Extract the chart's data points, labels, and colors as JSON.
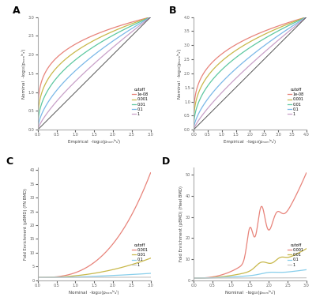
{
  "cutoffs_qq": [
    "1e-08",
    "0.001",
    "0.01",
    "0.1",
    "1"
  ],
  "colors_qq": [
    "#E8837A",
    "#C8B84A",
    "#5DC8A0",
    "#7AB8E8",
    "#C8A0C8"
  ],
  "cutoffs_fe": [
    "0.001",
    "0.01",
    "0.1",
    "1"
  ],
  "colors_fe": [
    "#E8837A",
    "#C8B84A",
    "#87CEEB",
    "#C8C8C8"
  ],
  "xlabel_qq_A": "Empirical  -log10(pₙₒₘᴵⁿₐᴵ)",
  "xlabel_qq_B": "Empirical  -log10(pₙₒₘᴵⁿₐᴵ)",
  "ylabel_qq": "Nominal  -log10(pₙₒₘᴵⁿₐᴵ)",
  "xlabel_fe": "Nominal  -log10(pₙₒₘᴵⁿₐᴵ)",
  "ylabel_fe_C": "Fold Enrichment (pBMD) (FN BMD)",
  "ylabel_fe_D": "Fold Enrichment (pBMD) (Heel BMD)",
  "legend_title": "cutoff",
  "bg_color": "#FFFFFF",
  "panel_label_size": 8
}
